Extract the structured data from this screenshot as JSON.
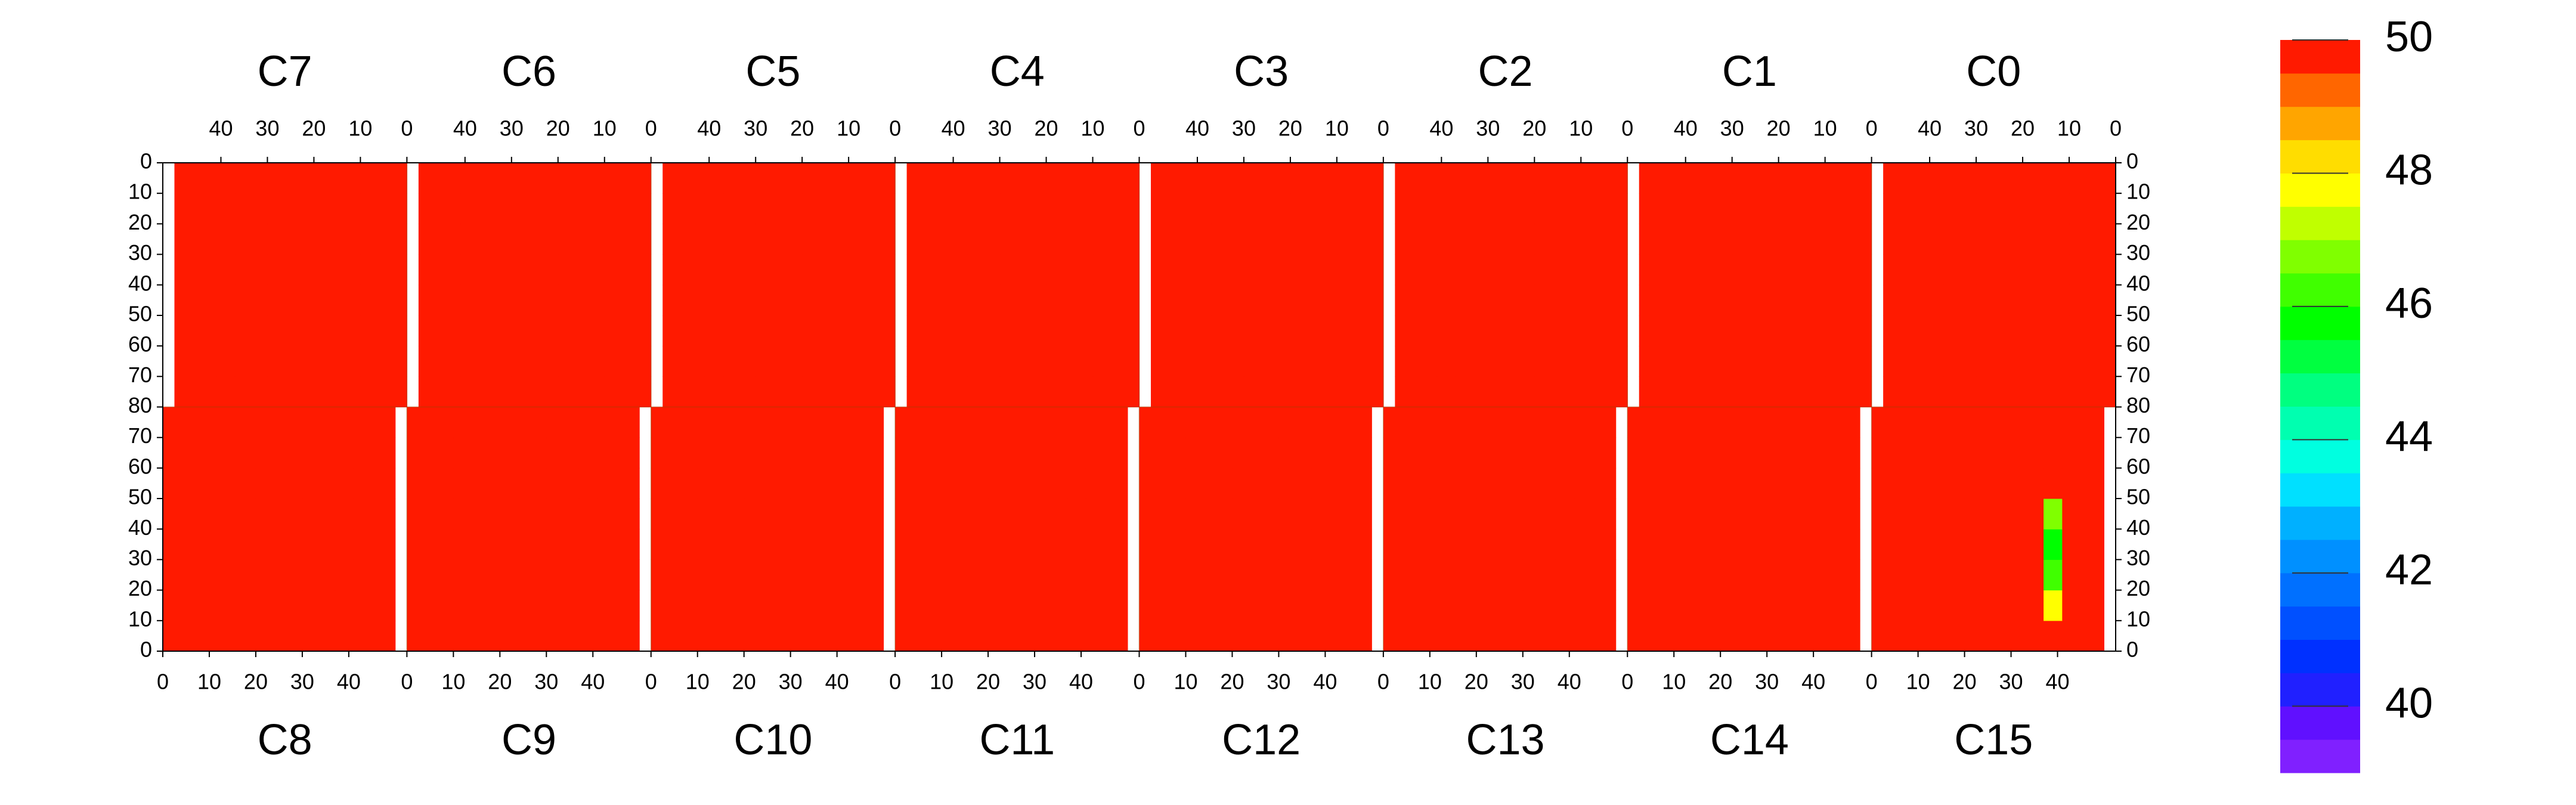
{
  "chart_data": {
    "type": "heatmap",
    "xlim": [
      0,
      52.5
    ],
    "xticks": [
      0,
      10,
      20,
      30,
      40
    ],
    "ylim": [
      0,
      80
    ],
    "yticks": [
      0,
      10,
      20,
      30,
      40,
      50,
      60,
      70,
      80
    ],
    "x_bins": [
      0,
      10,
      20,
      30,
      37,
      41,
      50
    ],
    "y_bins": [
      0,
      10,
      20,
      30,
      40,
      50,
      60,
      70,
      80
    ],
    "zlim": [
      39,
      50
    ],
    "zticks": [
      40,
      42,
      44,
      46,
      48,
      50
    ],
    "colorscale": [
      "#8020ff",
      "#6010ff",
      "#2020ff",
      "#0030ff",
      "#0050ff",
      "#0070ff",
      "#0090ff",
      "#00b0ff",
      "#00e0ff",
      "#00ffe0",
      "#00ffb0",
      "#00ff80",
      "#00ff40",
      "#00ff00",
      "#40ff00",
      "#80ff00",
      "#c0ff00",
      "#ffff00",
      "#ffdd00",
      "#ffa500",
      "#ff6600",
      "#ff1a00"
    ],
    "panels": [
      {
        "label": "C0",
        "values": [
          [
            50,
            50,
            50,
            50,
            50,
            50
          ],
          [
            50,
            50,
            50,
            50,
            50,
            50
          ],
          [
            50,
            50,
            50,
            50,
            50,
            50
          ],
          [
            50,
            50,
            50,
            50,
            50,
            50
          ],
          [
            50,
            50,
            50,
            50,
            50,
            50
          ],
          [
            50,
            50,
            50,
            50,
            50,
            50
          ],
          [
            50,
            50,
            50,
            50,
            50,
            50
          ],
          [
            50,
            50,
            50,
            50,
            50,
            50
          ]
        ]
      },
      {
        "label": "C1",
        "values": [
          [
            50,
            50,
            50,
            50,
            50,
            50
          ],
          [
            50,
            50,
            50,
            50,
            50,
            50
          ],
          [
            50,
            50,
            50,
            50,
            50,
            50
          ],
          [
            50,
            50,
            50,
            50,
            50,
            50
          ],
          [
            50,
            50,
            50,
            50,
            50,
            50
          ],
          [
            50,
            50,
            50,
            50,
            50,
            50
          ],
          [
            50,
            50,
            50,
            50,
            50,
            50
          ],
          [
            50,
            50,
            50,
            50,
            50,
            50
          ]
        ]
      },
      {
        "label": "C2",
        "values": [
          [
            50,
            50,
            50,
            50,
            50,
            50
          ],
          [
            50,
            50,
            50,
            50,
            50,
            50
          ],
          [
            50,
            50,
            50,
            50,
            50,
            50
          ],
          [
            50,
            50,
            50,
            50,
            50,
            50
          ],
          [
            50,
            50,
            50,
            50,
            50,
            50
          ],
          [
            50,
            50,
            50,
            50,
            50,
            50
          ],
          [
            50,
            50,
            50,
            50,
            50,
            50
          ],
          [
            50,
            50,
            50,
            50,
            50,
            50
          ]
        ]
      },
      {
        "label": "C3",
        "values": [
          [
            50,
            50,
            50,
            50,
            50,
            50
          ],
          [
            50,
            50,
            50,
            50,
            50,
            50
          ],
          [
            50,
            50,
            50,
            50,
            50,
            50
          ],
          [
            50,
            50,
            50,
            50,
            50,
            50
          ],
          [
            50,
            50,
            50,
            50,
            50,
            50
          ],
          [
            50,
            50,
            50,
            50,
            50,
            50
          ],
          [
            50,
            50,
            50,
            50,
            50,
            50
          ],
          [
            50,
            50,
            50,
            50,
            50,
            50
          ]
        ]
      },
      {
        "label": "C4",
        "values": [
          [
            50,
            50,
            50,
            50,
            50,
            50
          ],
          [
            50,
            50,
            50,
            50,
            50,
            50
          ],
          [
            50,
            50,
            50,
            50,
            50,
            50
          ],
          [
            50,
            50,
            50,
            50,
            50,
            50
          ],
          [
            50,
            50,
            50,
            50,
            50,
            50
          ],
          [
            50,
            50,
            50,
            50,
            50,
            50
          ],
          [
            50,
            50,
            50,
            50,
            50,
            50
          ],
          [
            50,
            50,
            50,
            50,
            50,
            50
          ]
        ]
      },
      {
        "label": "C5",
        "values": [
          [
            50,
            50,
            50,
            50,
            50,
            50
          ],
          [
            50,
            50,
            50,
            50,
            50,
            50
          ],
          [
            50,
            50,
            50,
            50,
            50,
            50
          ],
          [
            50,
            50,
            50,
            50,
            50,
            50
          ],
          [
            50,
            50,
            50,
            50,
            50,
            50
          ],
          [
            50,
            50,
            50,
            50,
            50,
            50
          ],
          [
            50,
            50,
            50,
            50,
            50,
            50
          ],
          [
            50,
            50,
            50,
            50,
            50,
            50
          ]
        ]
      },
      {
        "label": "C6",
        "values": [
          [
            50,
            50,
            50,
            50,
            50,
            50
          ],
          [
            50,
            50,
            50,
            50,
            50,
            50
          ],
          [
            50,
            50,
            50,
            50,
            50,
            50
          ],
          [
            50,
            50,
            50,
            50,
            50,
            50
          ],
          [
            50,
            50,
            50,
            50,
            50,
            50
          ],
          [
            50,
            50,
            50,
            50,
            50,
            50
          ],
          [
            50,
            50,
            50,
            50,
            50,
            50
          ],
          [
            50,
            50,
            50,
            50,
            50,
            50
          ]
        ]
      },
      {
        "label": "C7",
        "values": [
          [
            50,
            50,
            50,
            50,
            50,
            50
          ],
          [
            50,
            50,
            50,
            50,
            50,
            50
          ],
          [
            50,
            50,
            50,
            50,
            50,
            50
          ],
          [
            50,
            50,
            50,
            50,
            50,
            50
          ],
          [
            50,
            50,
            50,
            50,
            50,
            50
          ],
          [
            50,
            50,
            50,
            50,
            50,
            50
          ],
          [
            50,
            50,
            50,
            50,
            50,
            50
          ],
          [
            50,
            50,
            50,
            50,
            50,
            50
          ]
        ]
      },
      {
        "label": "C8",
        "values": [
          [
            50,
            50,
            50,
            50,
            50,
            50
          ],
          [
            50,
            50,
            50,
            50,
            50,
            50
          ],
          [
            50,
            50,
            50,
            50,
            50,
            50
          ],
          [
            50,
            50,
            50,
            50,
            50,
            50
          ],
          [
            50,
            50,
            50,
            50,
            50,
            50
          ],
          [
            50,
            50,
            50,
            50,
            50,
            50
          ],
          [
            50,
            50,
            50,
            50,
            50,
            50
          ],
          [
            50,
            50,
            50,
            50,
            50,
            50
          ]
        ]
      },
      {
        "label": "C9",
        "values": [
          [
            50,
            50,
            50,
            50,
            50,
            50
          ],
          [
            50,
            50,
            50,
            50,
            50,
            50
          ],
          [
            50,
            50,
            50,
            50,
            50,
            50
          ],
          [
            50,
            50,
            50,
            50,
            50,
            50
          ],
          [
            50,
            50,
            50,
            50,
            50,
            50
          ],
          [
            50,
            50,
            50,
            50,
            50,
            50
          ],
          [
            50,
            50,
            50,
            50,
            50,
            50
          ],
          [
            50,
            50,
            50,
            50,
            50,
            50
          ]
        ]
      },
      {
        "label": "C10",
        "values": [
          [
            50,
            50,
            50,
            50,
            50,
            50
          ],
          [
            50,
            50,
            50,
            50,
            50,
            50
          ],
          [
            50,
            50,
            50,
            50,
            50,
            50
          ],
          [
            50,
            50,
            50,
            50,
            50,
            50
          ],
          [
            50,
            50,
            50,
            50,
            50,
            50
          ],
          [
            50,
            50,
            50,
            50,
            50,
            50
          ],
          [
            50,
            50,
            50,
            50,
            50,
            50
          ],
          [
            50,
            50,
            50,
            50,
            50,
            50
          ]
        ]
      },
      {
        "label": "C11",
        "values": [
          [
            50,
            50,
            50,
            50,
            50,
            50
          ],
          [
            50,
            50,
            50,
            50,
            50,
            50
          ],
          [
            50,
            50,
            50,
            50,
            50,
            50
          ],
          [
            50,
            50,
            50,
            50,
            50,
            50
          ],
          [
            50,
            50,
            50,
            50,
            50,
            50
          ],
          [
            50,
            50,
            50,
            50,
            50,
            50
          ],
          [
            50,
            50,
            50,
            50,
            50,
            50
          ],
          [
            50,
            50,
            50,
            50,
            50,
            50
          ]
        ]
      },
      {
        "label": "C12",
        "values": [
          [
            50,
            50,
            50,
            50,
            50,
            50
          ],
          [
            50,
            50,
            50,
            50,
            50,
            50
          ],
          [
            50,
            50,
            50,
            50,
            50,
            50
          ],
          [
            50,
            50,
            50,
            50,
            50,
            50
          ],
          [
            50,
            50,
            50,
            50,
            50,
            50
          ],
          [
            50,
            50,
            50,
            50,
            50,
            50
          ],
          [
            50,
            50,
            50,
            50,
            50,
            50
          ],
          [
            50,
            50,
            50,
            50,
            50,
            50
          ]
        ]
      },
      {
        "label": "C13",
        "values": [
          [
            50,
            50,
            50,
            50,
            50,
            50
          ],
          [
            50,
            50,
            50,
            50,
            50,
            50
          ],
          [
            50,
            50,
            50,
            50,
            50,
            50
          ],
          [
            50,
            50,
            50,
            50,
            50,
            50
          ],
          [
            50,
            50,
            50,
            50,
            50,
            50
          ],
          [
            50,
            50,
            50,
            50,
            50,
            50
          ],
          [
            50,
            50,
            50,
            50,
            50,
            50
          ],
          [
            50,
            50,
            50,
            50,
            50,
            50
          ]
        ]
      },
      {
        "label": "C14",
        "values": [
          [
            50,
            50,
            50,
            50,
            50,
            50
          ],
          [
            50,
            50,
            50,
            50,
            50,
            50
          ],
          [
            50,
            50,
            50,
            50,
            50,
            50
          ],
          [
            50,
            50,
            50,
            50,
            50,
            50
          ],
          [
            50,
            50,
            50,
            50,
            50,
            50
          ],
          [
            50,
            50,
            50,
            50,
            50,
            50
          ],
          [
            50,
            50,
            50,
            50,
            50,
            50
          ],
          [
            50,
            50,
            50,
            50,
            50,
            50
          ]
        ]
      },
      {
        "label": "C15",
        "values": [
          [
            50,
            50,
            50,
            50,
            50,
            50
          ],
          [
            50,
            50,
            50,
            50,
            47.5,
            50
          ],
          [
            50,
            50,
            50,
            50,
            46,
            50
          ],
          [
            50,
            50,
            50,
            50,
            45.5,
            50
          ],
          [
            50,
            50,
            50,
            50,
            46.5,
            50
          ],
          [
            50,
            50,
            50,
            50,
            50,
            50
          ],
          [
            50,
            50,
            50,
            50,
            50,
            50
          ],
          [
            50,
            50,
            50,
            50,
            50,
            50
          ]
        ]
      }
    ]
  }
}
